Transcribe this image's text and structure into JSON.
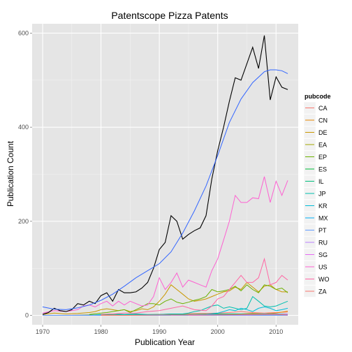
{
  "chart_data": {
    "type": "line",
    "title": "Patentscope Pizza Patents",
    "xlabel": "Publication Year",
    "ylabel": "Publication Count",
    "xlim": [
      1968.2,
      2013.8
    ],
    "ylim": [
      -20,
      620
    ],
    "xticks": [
      1970,
      1980,
      1990,
      2000,
      2010
    ],
    "yticks": [
      0,
      200,
      400,
      600
    ],
    "grid": true,
    "panel_background": "#e5e5e5",
    "legend": {
      "title": "pubcode",
      "placement": "right",
      "entries": [
        {
          "name": "CA",
          "color": "#F8766D"
        },
        {
          "name": "CN",
          "color": "#E58700"
        },
        {
          "name": "DE",
          "color": "#C99800"
        },
        {
          "name": "EA",
          "color": "#A3A500"
        },
        {
          "name": "EP",
          "color": "#6BB100"
        },
        {
          "name": "ES",
          "color": "#00BA38"
        },
        {
          "name": "IL",
          "color": "#00BF7D"
        },
        {
          "name": "JP",
          "color": "#00C0AF"
        },
        {
          "name": "KR",
          "color": "#00BCD8"
        },
        {
          "name": "MX",
          "color": "#00B0F6"
        },
        {
          "name": "PT",
          "color": "#619CFF"
        },
        {
          "name": "RU",
          "color": "#B983FF"
        },
        {
          "name": "SG",
          "color": "#E76BF3"
        },
        {
          "name": "US",
          "color": "#FD61D1"
        },
        {
          "name": "WO",
          "color": "#FF67A4"
        },
        {
          "name": "ZA",
          "color": "#F8766D"
        }
      ]
    },
    "total": {
      "color": "#000000",
      "x": [
        1970,
        1971,
        1972,
        1973,
        1974,
        1975,
        1976,
        1977,
        1978,
        1979,
        1980,
        1981,
        1982,
        1983,
        1984,
        1985,
        1986,
        1987,
        1988,
        1989,
        1990,
        1991,
        1992,
        1993,
        1994,
        1995,
        1996,
        1997,
        1998,
        1999,
        2000,
        2001,
        2002,
        2003,
        2004,
        2005,
        2006,
        2007,
        2008,
        2009,
        2010,
        2011,
        2012
      ],
      "values": [
        2,
        6,
        15,
        10,
        8,
        12,
        25,
        22,
        30,
        25,
        42,
        48,
        30,
        55,
        48,
        48,
        50,
        58,
        70,
        100,
        140,
        155,
        212,
        200,
        162,
        172,
        180,
        186,
        212,
        290,
        350,
        400,
        455,
        505,
        500,
        535,
        570,
        525,
        595,
        458,
        507,
        485,
        480
      ]
    },
    "smooth": {
      "color": "#3366FF",
      "x": [
        1970,
        1972,
        1974,
        1976,
        1978,
        1980,
        1982,
        1984,
        1986,
        1988,
        1990,
        1992,
        1994,
        1996,
        1998,
        2000,
        2002,
        2004,
        2006,
        2008,
        2009,
        2010,
        2011,
        2012
      ],
      "values": [
        18,
        13,
        12,
        16,
        22,
        32,
        45,
        62,
        80,
        95,
        110,
        135,
        175,
        222,
        275,
        340,
        410,
        460,
        495,
        518,
        522,
        522,
        520,
        514
      ]
    },
    "series": [
      {
        "name": "CA",
        "color": "#F8766D",
        "x": [
          1970,
          1974,
          1978,
          1982,
          1986,
          1990,
          1992,
          1994,
          1996,
          1998,
          2000,
          2002,
          2004,
          2006,
          2008,
          2010,
          2012
        ],
        "values": [
          0,
          0,
          1,
          1,
          1,
          2,
          3,
          3,
          4,
          4,
          5,
          6,
          8,
          6,
          5,
          6,
          7
        ]
      },
      {
        "name": "CN",
        "color": "#E58700",
        "x": [
          1970,
          1975,
          1980,
          1985,
          1990,
          1995,
          2000,
          2002,
          2004,
          2006,
          2008,
          2010,
          2012
        ],
        "values": [
          0,
          0,
          0,
          0,
          0,
          1,
          1,
          2,
          3,
          4,
          3,
          5,
          9
        ]
      },
      {
        "name": "DE",
        "color": "#C99800",
        "x": [
          1970,
          1972,
          1974,
          1976,
          1978,
          1979,
          1980,
          1981,
          1982,
          1983,
          1984,
          1985,
          1986,
          1987,
          1988,
          1989,
          1990,
          1991,
          1992,
          1993,
          1994,
          1995,
          1996,
          1997,
          1998,
          1999,
          2000,
          2001,
          2002,
          2003,
          2004,
          2005,
          2006,
          2007,
          2008,
          2009,
          2010,
          2011,
          2012
        ],
        "values": [
          2,
          5,
          3,
          4,
          6,
          8,
          12,
          14,
          12,
          10,
          12,
          8,
          10,
          14,
          12,
          18,
          30,
          45,
          65,
          55,
          45,
          35,
          30,
          32,
          35,
          40,
          45,
          50,
          52,
          60,
          55,
          70,
          60,
          50,
          62,
          65,
          55,
          50,
          50
        ]
      },
      {
        "name": "EA",
        "color": "#A3A500",
        "x": [
          1970,
          1980,
          1990,
          2000,
          2005,
          2010,
          2012
        ],
        "values": [
          0,
          0,
          0,
          0,
          0,
          0,
          1
        ]
      },
      {
        "name": "EP",
        "color": "#6BB100",
        "x": [
          1978,
          1980,
          1981,
          1982,
          1983,
          1984,
          1985,
          1986,
          1987,
          1988,
          1989,
          1990,
          1991,
          1992,
          1993,
          1994,
          1995,
          1996,
          1997,
          1998,
          1999,
          2000,
          2001,
          2002,
          2003,
          2004,
          2005,
          2006,
          2007,
          2008,
          2009,
          2010,
          2011,
          2012
        ],
        "values": [
          2,
          5,
          6,
          8,
          10,
          12,
          6,
          12,
          18,
          25,
          25,
          22,
          30,
          35,
          28,
          25,
          28,
          32,
          35,
          40,
          55,
          50,
          52,
          55,
          62,
          52,
          65,
          55,
          48,
          65,
          62,
          55,
          58,
          48
        ]
      },
      {
        "name": "ES",
        "color": "#00BA38",
        "x": [
          1970,
          1975,
          1980,
          1985,
          1990,
          1995,
          2000,
          2005,
          2010,
          2012
        ],
        "values": [
          0,
          0,
          1,
          1,
          2,
          2,
          3,
          3,
          3,
          3
        ]
      },
      {
        "name": "IL",
        "color": "#00BF7D",
        "x": [
          1970,
          1980,
          1990,
          2000,
          2005,
          2010,
          2012
        ],
        "values": [
          0,
          0,
          0,
          1,
          1,
          1,
          1
        ]
      },
      {
        "name": "JP",
        "color": "#00C0AF",
        "x": [
          1978,
          1980,
          1982,
          1984,
          1986,
          1988,
          1990,
          1992,
          1994,
          1995,
          1996,
          1997,
          1998,
          1999,
          2000,
          2001,
          2002,
          2003,
          2004,
          2005,
          2006,
          2007,
          2008,
          2009,
          2010,
          2011,
          2012
        ],
        "values": [
          0,
          2,
          3,
          2,
          3,
          2,
          2,
          3,
          3,
          5,
          8,
          10,
          15,
          20,
          22,
          15,
          18,
          15,
          12,
          15,
          40,
          30,
          20,
          18,
          20,
          25,
          30
        ]
      },
      {
        "name": "KR",
        "color": "#00BCD8",
        "x": [
          1985,
          1990,
          1995,
          1998,
          2000,
          2001,
          2002,
          2003,
          2004,
          2005,
          2006,
          2007,
          2008,
          2009,
          2010,
          2011,
          2012
        ],
        "values": [
          0,
          0,
          1,
          2,
          5,
          8,
          12,
          10,
          15,
          12,
          8,
          15,
          18,
          15,
          10,
          12,
          15
        ]
      },
      {
        "name": "MX",
        "color": "#00B0F6",
        "x": [
          1970,
          1980,
          1990,
          1995,
          2000,
          2005,
          2010,
          2012
        ],
        "values": [
          0,
          0,
          1,
          1,
          2,
          2,
          3,
          2
        ]
      },
      {
        "name": "PT",
        "color": "#619CFF",
        "x": [
          1970,
          1980,
          1990,
          2000,
          2012
        ],
        "values": [
          0,
          0,
          0,
          0,
          0
        ]
      },
      {
        "name": "RU",
        "color": "#B983FF",
        "x": [
          1992,
          1995,
          2000,
          2005,
          2010,
          2012
        ],
        "values": [
          0,
          1,
          1,
          2,
          2,
          3
        ]
      },
      {
        "name": "SG",
        "color": "#E76BF3",
        "x": [
          1995,
          2000,
          2005,
          2010,
          2012
        ],
        "values": [
          0,
          1,
          1,
          2,
          1
        ]
      },
      {
        "name": "US",
        "color": "#FD61D1",
        "x": [
          1970,
          1972,
          1974,
          1976,
          1977,
          1978,
          1979,
          1980,
          1981,
          1982,
          1983,
          1984,
          1985,
          1986,
          1987,
          1988,
          1989,
          1990,
          1991,
          1992,
          1993,
          1994,
          1995,
          1996,
          1997,
          1998,
          1999,
          2000,
          2001,
          2002,
          2003,
          2004,
          2005,
          2006,
          2007,
          2008,
          2009,
          2010,
          2011,
          2012
        ],
        "values": [
          5,
          10,
          8,
          12,
          20,
          22,
          18,
          25,
          30,
          20,
          30,
          22,
          30,
          25,
          20,
          22,
          40,
          80,
          55,
          70,
          90,
          60,
          75,
          70,
          65,
          60,
          95,
          120,
          160,
          200,
          255,
          240,
          240,
          250,
          248,
          295,
          240,
          285,
          255,
          287
        ]
      },
      {
        "name": "WO",
        "color": "#FF67A4",
        "x": [
          1980,
          1982,
          1984,
          1986,
          1988,
          1990,
          1992,
          1994,
          1996,
          1998,
          1999,
          2000,
          2001,
          2002,
          2003,
          2004,
          2005,
          2006,
          2007,
          2008,
          2009,
          2010,
          2011,
          2012
        ],
        "values": [
          2,
          3,
          5,
          5,
          8,
          10,
          15,
          20,
          12,
          10,
          20,
          35,
          40,
          55,
          70,
          85,
          70,
          70,
          80,
          120,
          65,
          70,
          85,
          75
        ]
      },
      {
        "name": "ZA",
        "color": "#F8766D",
        "x": [
          1980,
          1985,
          1990,
          1995,
          2000,
          2005,
          2010,
          2012
        ],
        "values": [
          0,
          0,
          1,
          1,
          1,
          2,
          2,
          1
        ]
      }
    ]
  }
}
